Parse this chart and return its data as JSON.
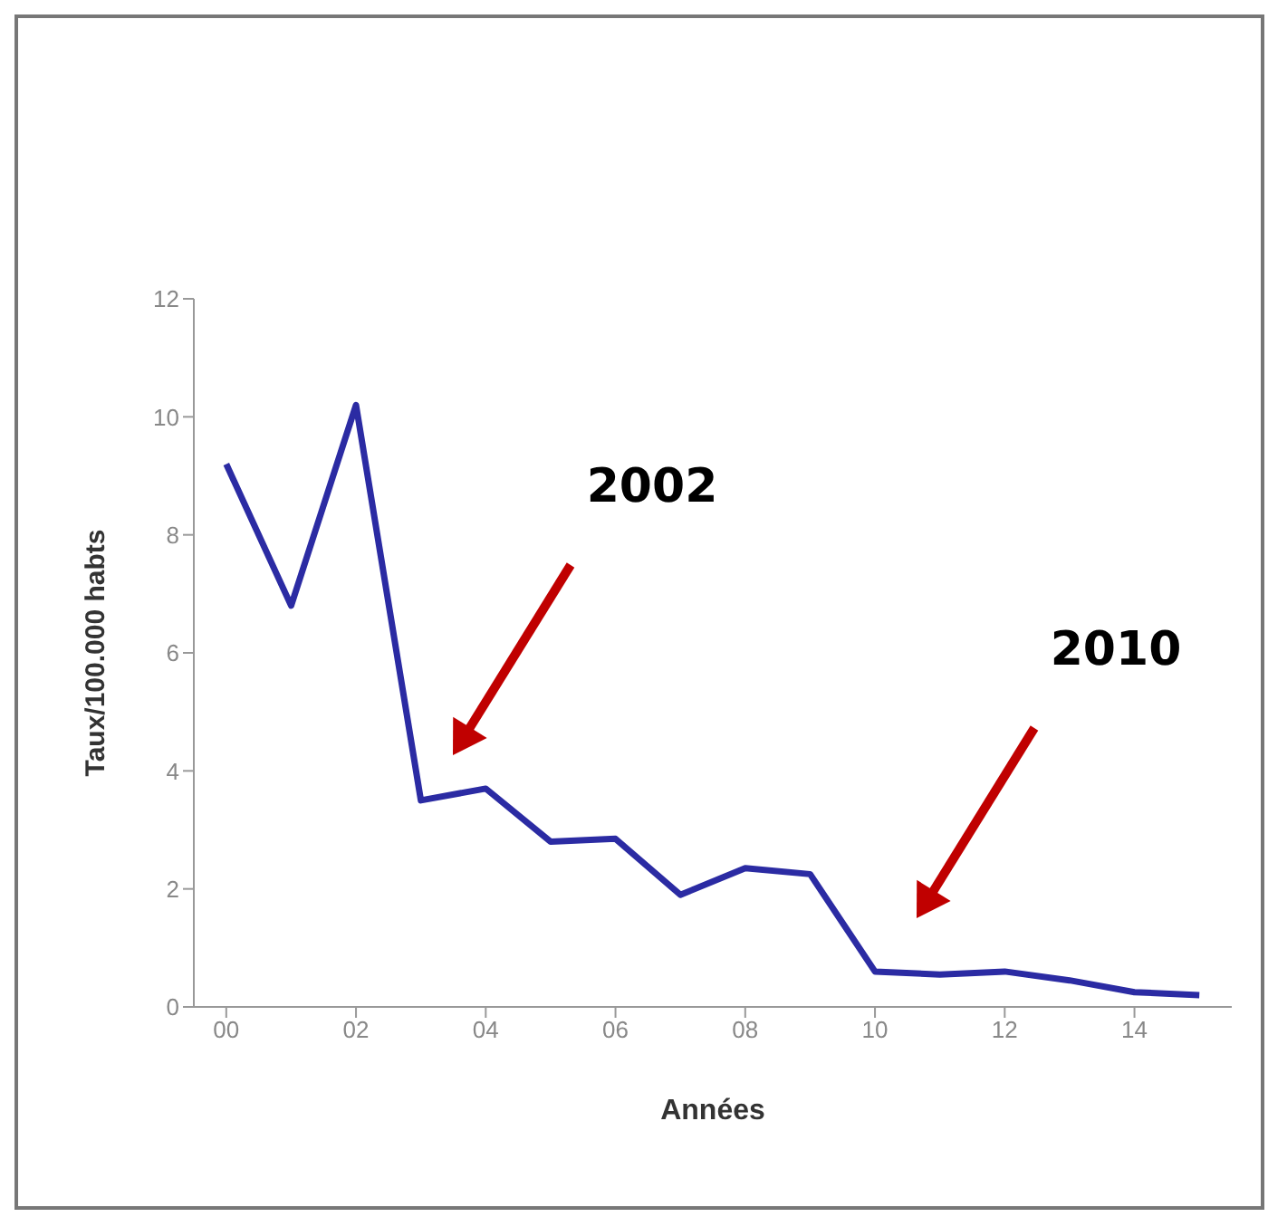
{
  "chart_data": {
    "type": "line",
    "xlabel": "Années",
    "ylabel": "Taux/100.000 habts",
    "x": [
      0,
      1,
      2,
      3,
      4,
      5,
      6,
      7,
      8,
      9,
      10,
      11,
      12,
      13,
      14,
      15
    ],
    "series": [
      {
        "color": "#2b2ba3",
        "values": [
          9.2,
          6.8,
          10.2,
          3.5,
          3.7,
          2.8,
          2.85,
          1.9,
          2.35,
          2.25,
          0.6,
          0.55,
          0.6,
          0.45,
          0.25,
          0.2
        ]
      }
    ],
    "xlim": [
      -0.5,
      15.5
    ],
    "xticks": [
      {
        "value": 0,
        "label": "00"
      },
      {
        "value": 2,
        "label": "02"
      },
      {
        "value": 4,
        "label": "04"
      },
      {
        "value": 6,
        "label": "06"
      },
      {
        "value": 8,
        "label": "08"
      },
      {
        "value": 10,
        "label": "10"
      },
      {
        "value": 12,
        "label": "12"
      },
      {
        "value": 14,
        "label": "14"
      }
    ],
    "ylim": [
      0,
      12
    ],
    "yticks": [
      0,
      2,
      4,
      6,
      8,
      10,
      12
    ],
    "annotations": [
      "2002",
      "2010"
    ],
    "grid": false,
    "legend": false,
    "marker": "none",
    "line_style": "solid"
  }
}
